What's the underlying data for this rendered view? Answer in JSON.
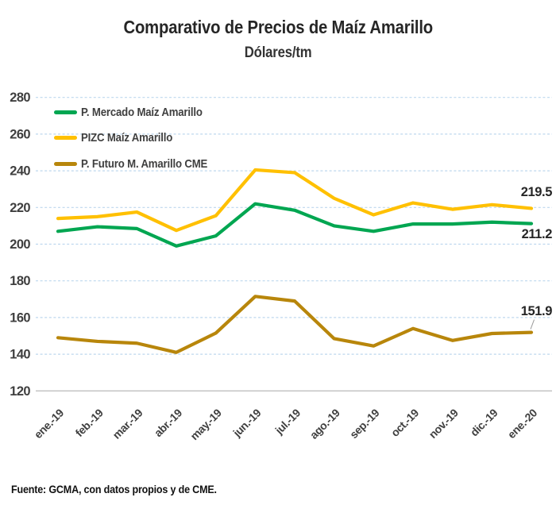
{
  "footer": {
    "source": "Fuente: GCMA, con datos propios y de CME."
  },
  "colors": {
    "title_text": "#262626",
    "axis_text": "#3F3F3F",
    "leader_line": "#999999"
  },
  "chart_data": {
    "type": "line",
    "title": "Comparativo de Precios de Maíz Amarillo",
    "subtitle": "Dólares/tm",
    "categories": [
      "ene.-19",
      "feb.-19",
      "mar.-19",
      "abr.-19",
      "may.-19",
      "jun.-19",
      "jul.-19",
      "ago.-19",
      "sep.-19",
      "oct.-19",
      "nov.-19",
      "dic.-19",
      "ene.-20"
    ],
    "series": [
      {
        "name": "P. Mercado Maíz Amarillo",
        "color": "#00A651",
        "values": [
          207,
          209.5,
          208.5,
          199,
          204.5,
          222,
          218.5,
          210,
          207,
          211,
          211,
          212,
          211.2
        ],
        "end_label": "211.2"
      },
      {
        "name": "PIZC Maíz Amarillo",
        "color": "#FFC000",
        "values": [
          214,
          215,
          217.5,
          207.5,
          215.5,
          240.5,
          239,
          225,
          216,
          222.5,
          219,
          221.5,
          219.5
        ],
        "end_label": "219.5"
      },
      {
        "name": "P. Futuro M. Amarillo CME",
        "color": "#B8860B",
        "values": [
          149,
          147,
          146,
          141,
          151.5,
          171.5,
          169,
          148.5,
          144.5,
          154,
          147.5,
          151.3,
          151.9
        ],
        "end_label": "151.9"
      }
    ],
    "ylim": [
      120,
      280
    ],
    "yticks": [
      120,
      140,
      160,
      180,
      200,
      220,
      240,
      260,
      280
    ],
    "ytick_step": 20,
    "grid": {
      "show": true,
      "color": "#BDD7EE",
      "style": "dashed"
    },
    "axis_color": "#BFBFBF",
    "legend_position": "top-left",
    "xlabel": "",
    "ylabel": ""
  }
}
